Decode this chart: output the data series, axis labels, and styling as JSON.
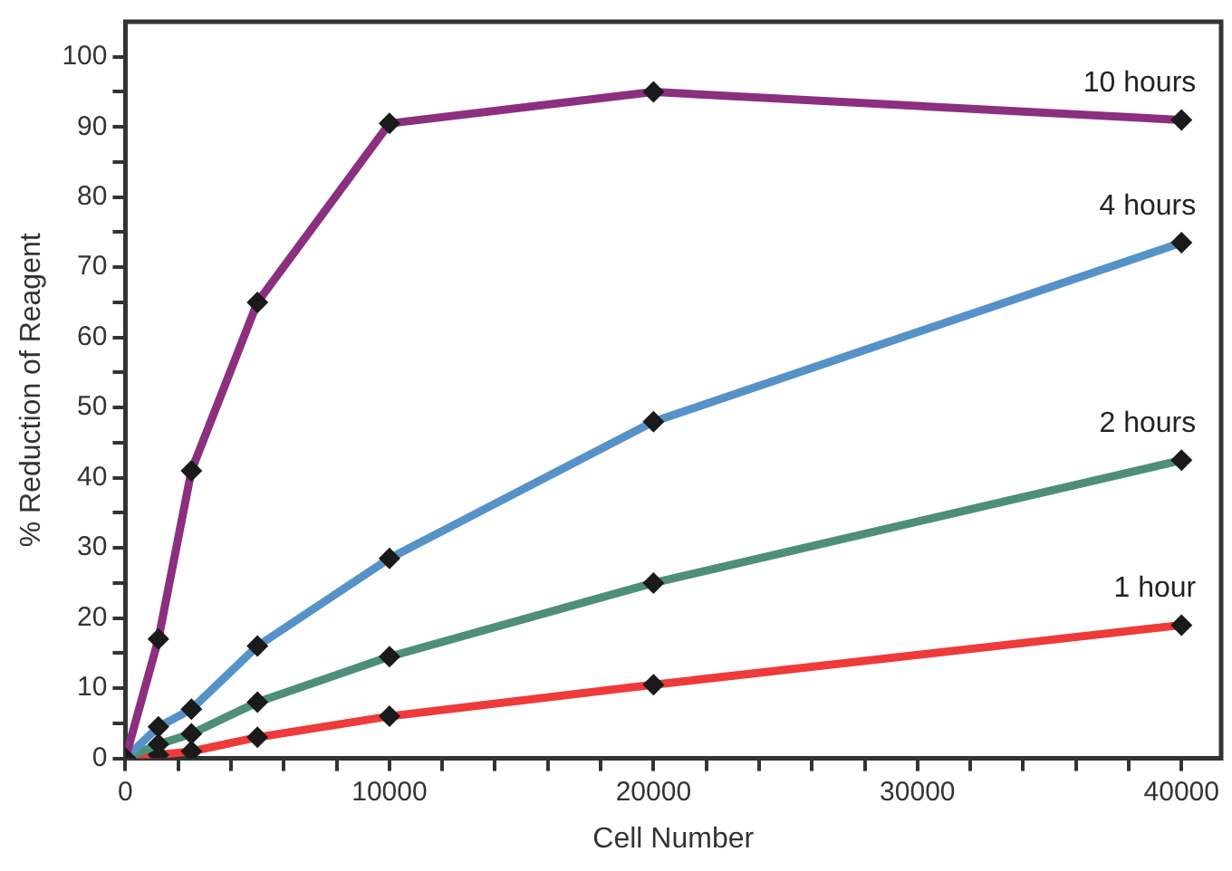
{
  "chart_data": {
    "type": "line",
    "xlabel": "Cell Number",
    "ylabel": "% Reduction of Reagent",
    "x": [
      0,
      1250,
      2500,
      5000,
      10000,
      20000,
      40000
    ],
    "series": [
      {
        "name": "10 hours",
        "color": "#8b2f7e",
        "values": [
          0,
          17,
          41,
          65,
          90.5,
          95,
          91
        ]
      },
      {
        "name": "4 hours",
        "color": "#5592c8",
        "values": [
          0,
          4.5,
          7,
          16,
          28.5,
          48,
          73.5
        ]
      },
      {
        "name": "2 hours",
        "color": "#4e8f77",
        "values": [
          0,
          2,
          3.5,
          8,
          14.5,
          25,
          42.5
        ]
      },
      {
        "name": "1 hour",
        "color": "#ee3a3a",
        "values": [
          0,
          0.5,
          1,
          3,
          6,
          10.5,
          19
        ]
      }
    ],
    "xlim": [
      0,
      41500
    ],
    "ylim": [
      0,
      105
    ],
    "xticks": [
      0,
      {
        "value": 2000,
        "label": null
      },
      {
        "value": 4000,
        "label": null
      },
      {
        "value": 6000,
        "label": null
      },
      {
        "value": 8000,
        "label": null
      },
      10000,
      {
        "value": 12000,
        "label": null
      },
      {
        "value": 14000,
        "label": null
      },
      {
        "value": 16000,
        "label": null
      },
      {
        "value": 18000,
        "label": null
      },
      20000,
      {
        "value": 22000,
        "label": null
      },
      {
        "value": 24000,
        "label": null
      },
      {
        "value": 26000,
        "label": null
      },
      {
        "value": 28000,
        "label": null
      },
      30000,
      {
        "value": 32000,
        "label": null
      },
      {
        "value": 34000,
        "label": null
      },
      {
        "value": 36000,
        "label": null
      },
      {
        "value": 38000,
        "label": null
      },
      40000
    ],
    "yticks": [
      0,
      {
        "value": 5,
        "label": null
      },
      10,
      {
        "value": 15,
        "label": null
      },
      20,
      {
        "value": 25,
        "label": null
      },
      30,
      {
        "value": 35,
        "label": null
      },
      40,
      {
        "value": 45,
        "label": null
      },
      50,
      {
        "value": 55,
        "label": null
      },
      60,
      {
        "value": 65,
        "label": null
      },
      70,
      {
        "value": 75,
        "label": null
      },
      80,
      {
        "value": 85,
        "label": null
      },
      90,
      {
        "value": 95,
        "label": null
      },
      100
    ],
    "grid": false,
    "legend": false,
    "marker": "diamond",
    "line_style": "solid"
  }
}
